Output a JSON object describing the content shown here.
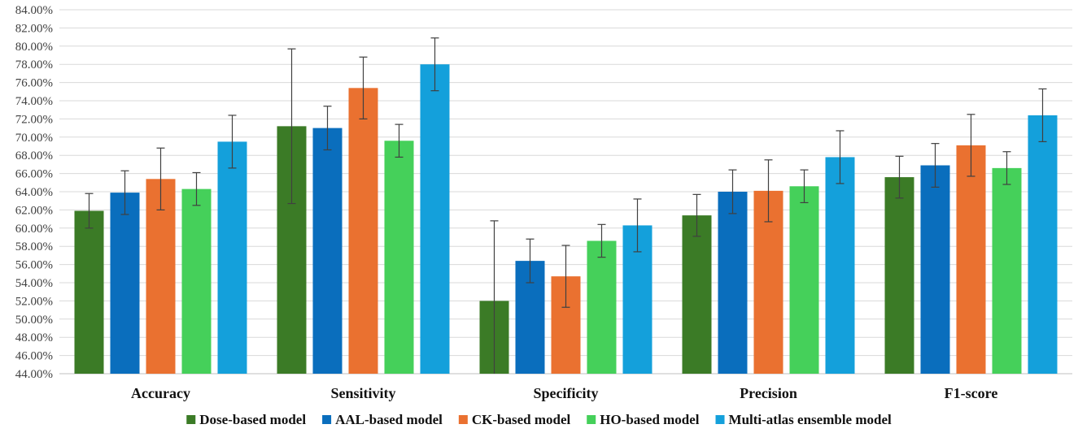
{
  "chart_data": {
    "type": "bar",
    "title": "",
    "xlabel": "",
    "ylabel": "",
    "ylim": [
      44,
      84
    ],
    "ytick_step": 2,
    "ytick_format": "percent_2dp",
    "grid": true,
    "legend_position": "bottom",
    "categories": [
      "Accuracy",
      "Sensitivity",
      "Specificity",
      "Precision",
      "F1-score"
    ],
    "series": [
      {
        "name": "Dose-based model",
        "color": "#3b7b26",
        "values": [
          61.9,
          71.2,
          52.0,
          61.4,
          65.6
        ],
        "errors": [
          1.9,
          8.5,
          8.8,
          2.3,
          2.3
        ]
      },
      {
        "name": "AAL-based model",
        "color": "#0a6ebd",
        "values": [
          63.9,
          71.0,
          56.4,
          64.0,
          66.9
        ],
        "errors": [
          2.4,
          2.4,
          2.4,
          2.4,
          2.4
        ]
      },
      {
        "name": "CK-based model",
        "color": "#ea7130",
        "values": [
          65.4,
          75.4,
          54.7,
          64.1,
          69.1
        ],
        "errors": [
          3.4,
          3.4,
          3.4,
          3.4,
          3.4
        ]
      },
      {
        "name": "HO-based model",
        "color": "#45d05a",
        "values": [
          64.3,
          69.6,
          58.6,
          64.6,
          66.6
        ],
        "errors": [
          1.8,
          1.8,
          1.8,
          1.8,
          1.8
        ]
      },
      {
        "name": "Multi-atlas ensemble model",
        "color": "#14a0db",
        "values": [
          69.5,
          78.0,
          60.3,
          67.8,
          72.4
        ],
        "errors": [
          2.9,
          2.9,
          2.9,
          2.9,
          2.9
        ]
      }
    ]
  }
}
